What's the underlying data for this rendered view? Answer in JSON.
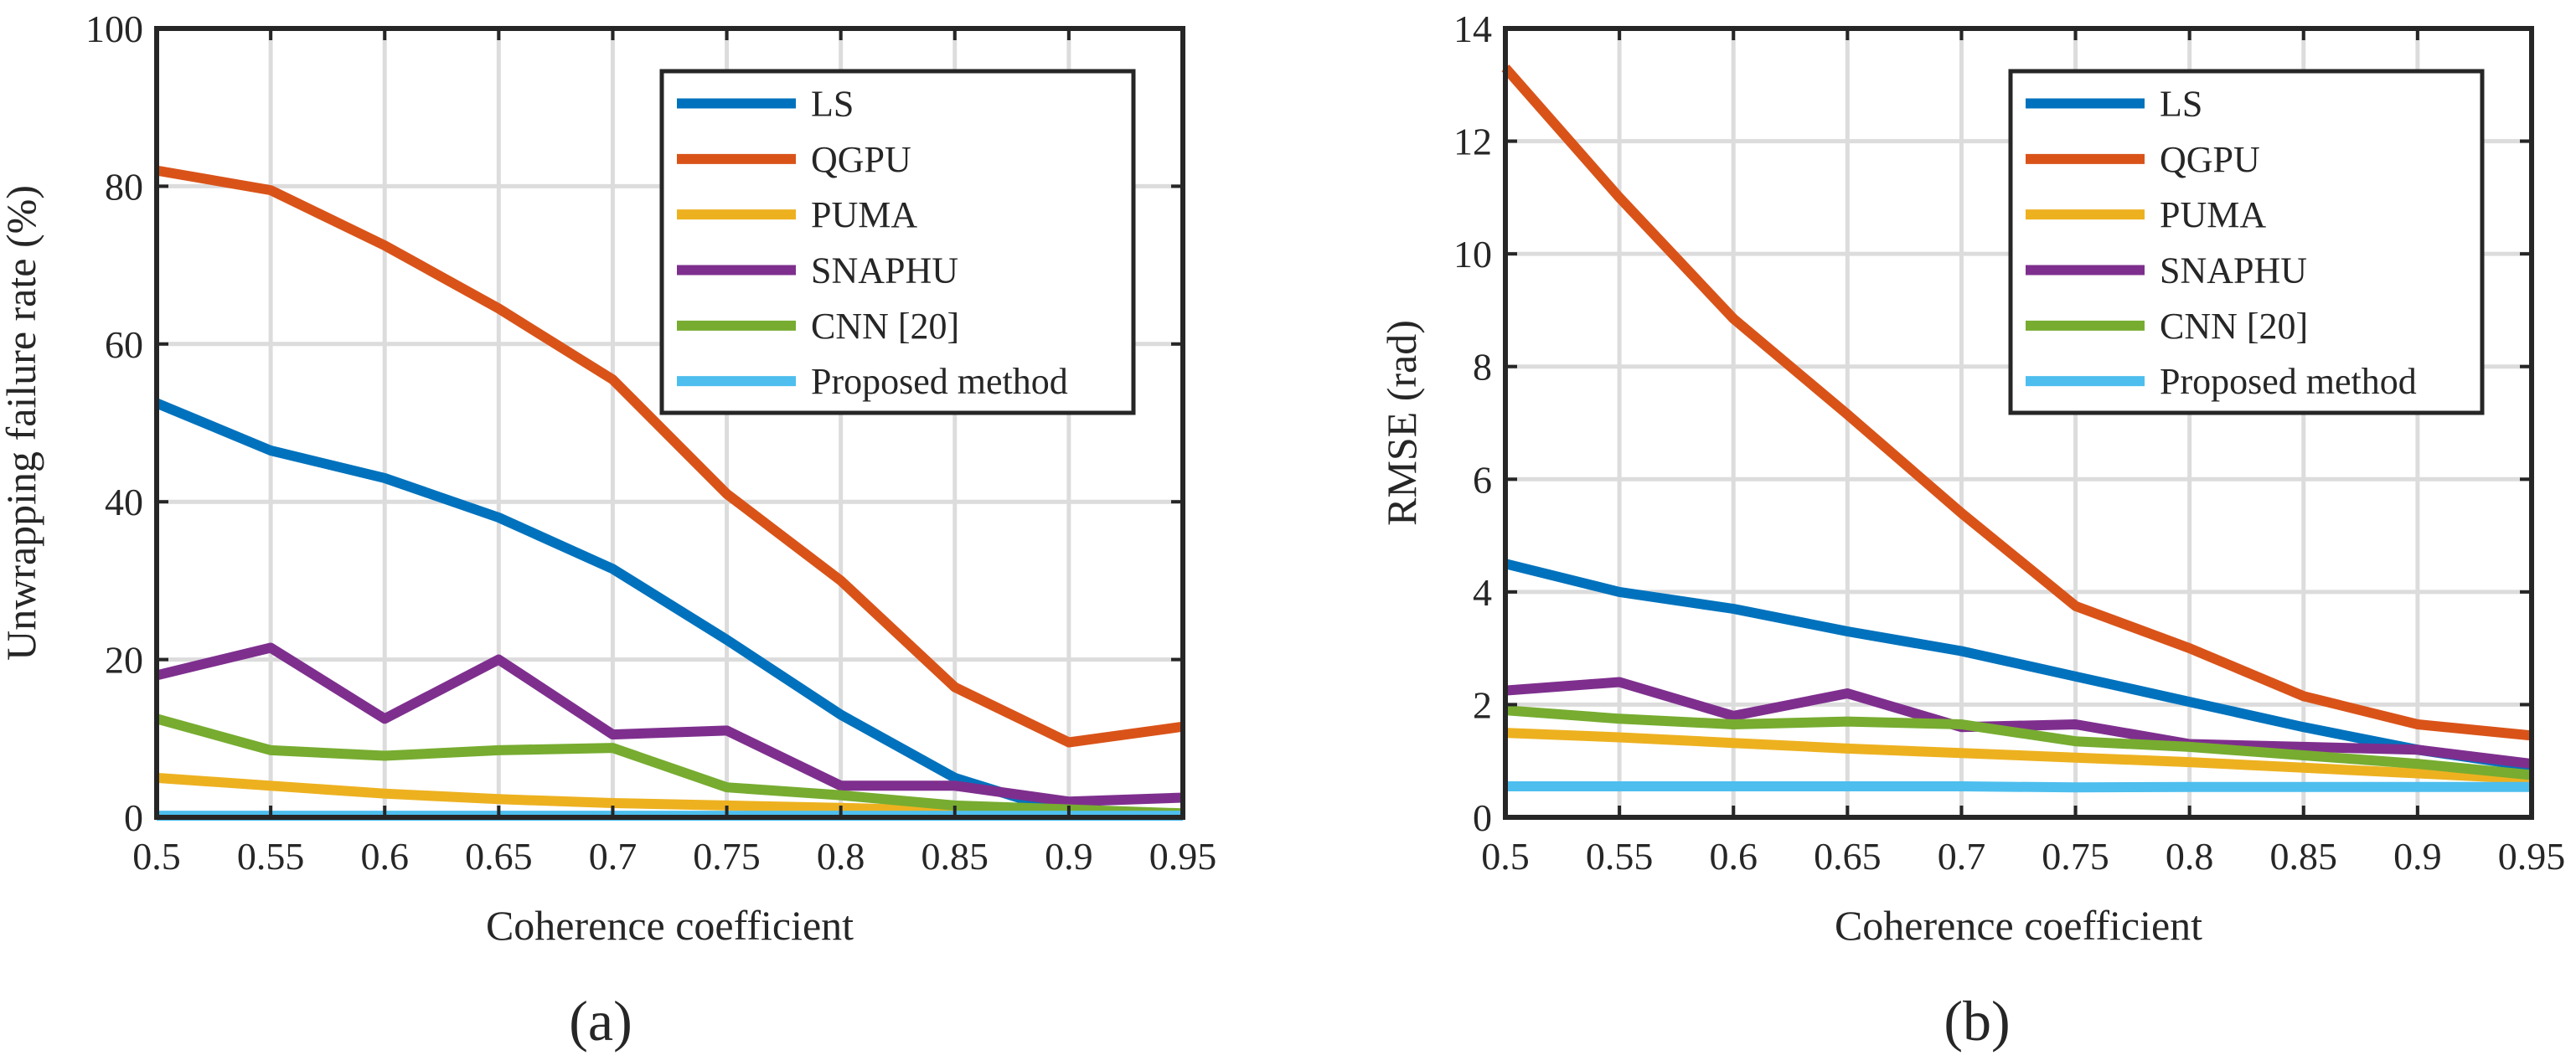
{
  "figure": {
    "panel_labels": [
      "(a)",
      "(b)"
    ]
  },
  "series_colors": {
    "LS": "#0072BD",
    "QGPU": "#D95319",
    "PUMA": "#EDB120",
    "SNAPHU": "#7E2F8E",
    "CNN [20]": "#77AC30",
    "Proposed method": "#4DBEEE"
  },
  "chart_data": [
    {
      "type": "line",
      "panel": "(a)",
      "xlabel": "Coherence coefficient",
      "ylabel": "Unwrapping failure rate (%)",
      "xlim": [
        0.5,
        0.95
      ],
      "ylim": [
        0,
        100
      ],
      "grid": true,
      "legend_position": "top-right",
      "x": [
        0.5,
        0.55,
        0.6,
        0.65,
        0.7,
        0.75,
        0.8,
        0.85,
        0.9,
        0.95
      ],
      "x_tick_labels": [
        "0.5",
        "0.55",
        "0.6",
        "0.65",
        "0.7",
        "0.75",
        "0.8",
        "0.85",
        "0.9",
        "0.95"
      ],
      "y_ticks": [
        0,
        20,
        40,
        60,
        80,
        100
      ],
      "y_tick_labels": [
        "0",
        "20",
        "40",
        "60",
        "80",
        "100"
      ],
      "series": [
        {
          "name": "LS",
          "values": [
            52.5,
            46.5,
            43,
            38,
            31.5,
            22.5,
            13,
            5,
            0.5,
            0.3
          ]
        },
        {
          "name": "QGPU",
          "values": [
            82,
            79.5,
            72.5,
            64.5,
            55.5,
            41,
            30,
            16.5,
            9.5,
            11.5
          ]
        },
        {
          "name": "PUMA",
          "values": [
            5,
            4,
            3,
            2.3,
            1.8,
            1.5,
            1.2,
            0.8,
            0.5,
            0.3
          ]
        },
        {
          "name": "SNAPHU",
          "values": [
            18,
            21.5,
            12.5,
            20,
            10.5,
            11,
            4,
            4,
            2,
            2.5
          ]
        },
        {
          "name": "CNN [20]",
          "values": [
            12.5,
            8.5,
            7.8,
            8.5,
            8.8,
            3.8,
            2.8,
            1.5,
            1,
            0.5
          ]
        },
        {
          "name": "Proposed method",
          "values": [
            0.2,
            0.2,
            0.2,
            0.2,
            0.2,
            0.2,
            0.2,
            0.2,
            0.2,
            0.2
          ]
        }
      ]
    },
    {
      "type": "line",
      "panel": "(b)",
      "xlabel": "Coherence coefficient",
      "ylabel": "RMSE (rad)",
      "xlim": [
        0.5,
        0.95
      ],
      "ylim": [
        0,
        14
      ],
      "grid": true,
      "legend_position": "top-right",
      "x": [
        0.5,
        0.55,
        0.6,
        0.65,
        0.7,
        0.75,
        0.8,
        0.85,
        0.9,
        0.95
      ],
      "x_tick_labels": [
        "0.5",
        "0.55",
        "0.6",
        "0.65",
        "0.7",
        "0.75",
        "0.8",
        "0.85",
        "0.9",
        "0.95"
      ],
      "y_ticks": [
        0,
        2,
        4,
        6,
        8,
        10,
        12,
        14
      ],
      "y_tick_labels": [
        "0",
        "2",
        "4",
        "6",
        "8",
        "10",
        "12",
        "14"
      ],
      "series": [
        {
          "name": "LS",
          "values": [
            4.5,
            4.0,
            3.7,
            3.3,
            2.95,
            2.5,
            2.05,
            1.6,
            1.2,
            0.9
          ]
        },
        {
          "name": "QGPU",
          "values": [
            13.3,
            11.0,
            8.85,
            7.15,
            5.4,
            3.75,
            3.0,
            2.15,
            1.65,
            1.45
          ]
        },
        {
          "name": "PUMA",
          "values": [
            1.5,
            1.42,
            1.32,
            1.22,
            1.14,
            1.06,
            0.98,
            0.88,
            0.78,
            0.68
          ]
        },
        {
          "name": "SNAPHU",
          "values": [
            2.25,
            2.4,
            1.8,
            2.2,
            1.6,
            1.65,
            1.3,
            1.25,
            1.2,
            0.95
          ]
        },
        {
          "name": "CNN [20]",
          "values": [
            1.9,
            1.75,
            1.65,
            1.7,
            1.65,
            1.35,
            1.25,
            1.1,
            0.95,
            0.75
          ]
        },
        {
          "name": "Proposed method",
          "values": [
            0.55,
            0.55,
            0.55,
            0.55,
            0.55,
            0.53,
            0.54,
            0.54,
            0.54,
            0.54
          ]
        }
      ]
    }
  ]
}
